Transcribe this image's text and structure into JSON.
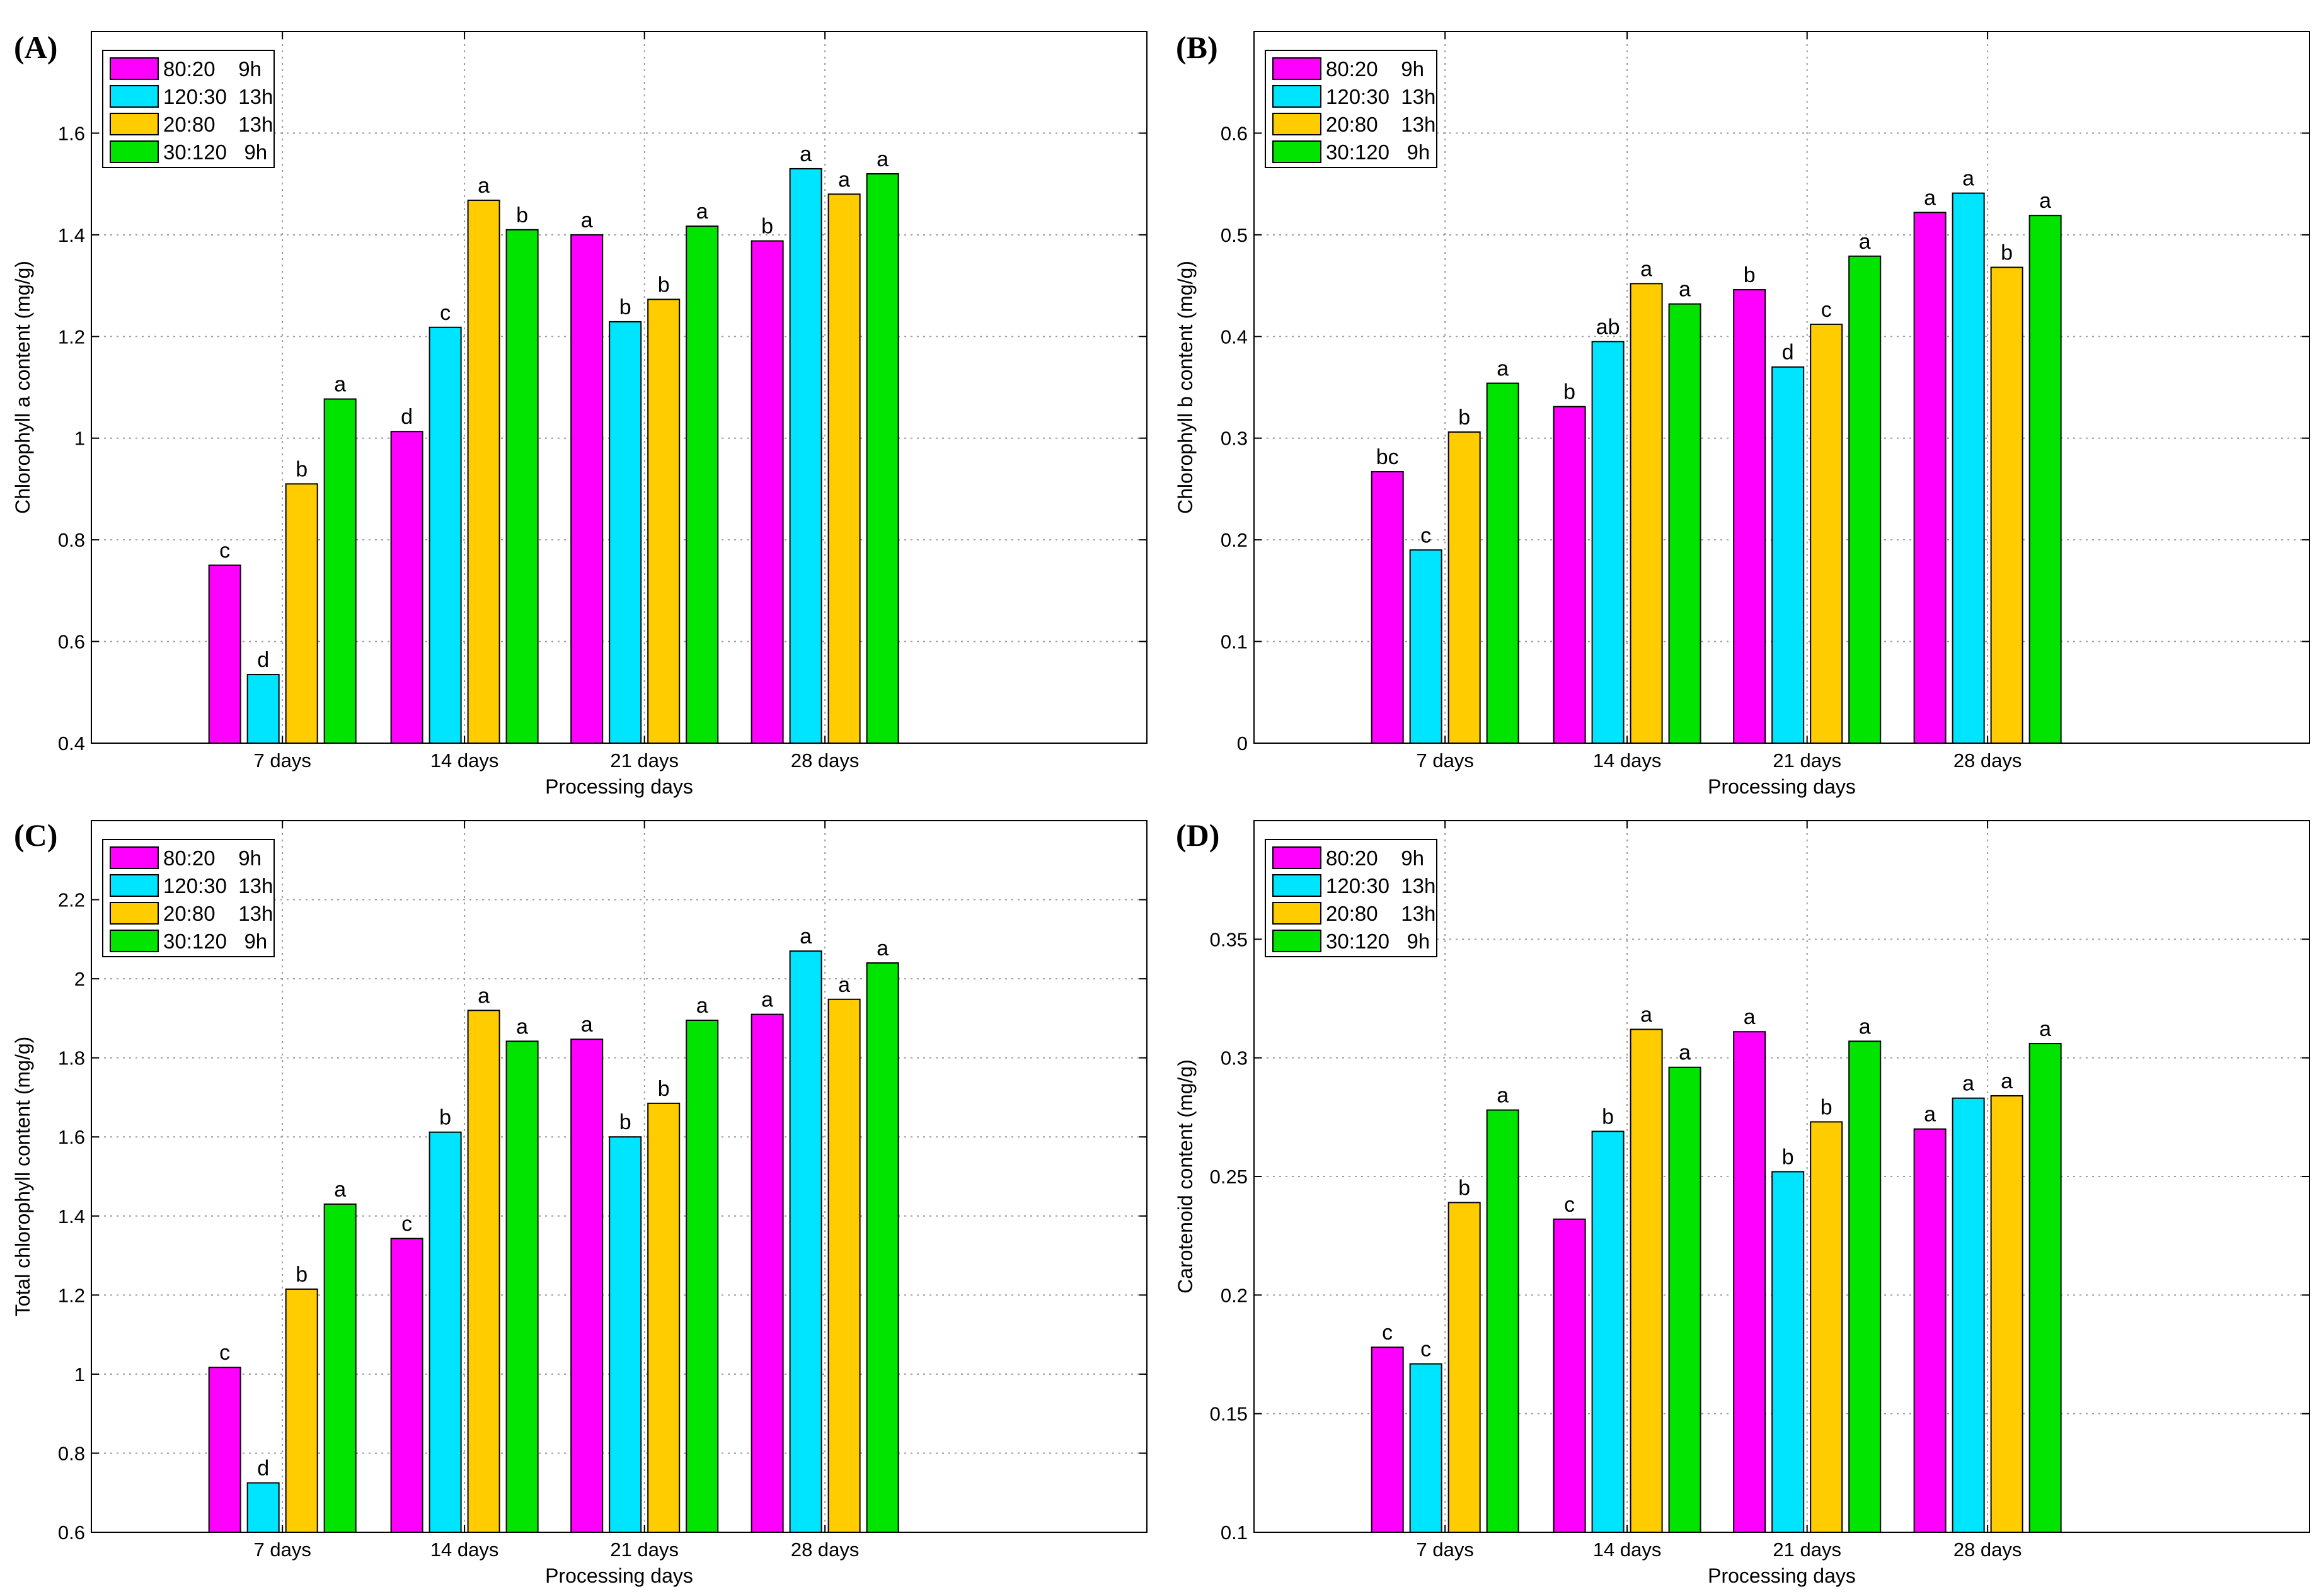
{
  "legend": {
    "entries": [
      {
        "text": "80:20    9h",
        "color": "#ff00ff"
      },
      {
        "text": "120:30  13h",
        "color": "#00e5ff"
      },
      {
        "text": "20:80    13h",
        "color": "#ffcc00"
      },
      {
        "text": "30:120   9h",
        "color": "#00e400"
      }
    ]
  },
  "chart_data": [
    {
      "panel_label": "(A)",
      "type": "bar",
      "title": "",
      "xlabel": "Processing days",
      "ylabel": "Chlorophyll a content (mg/g)",
      "ylim": [
        0.4,
        1.8
      ],
      "yticks": [
        0.4,
        0.6,
        0.8,
        1,
        1.2,
        1.4,
        1.6
      ],
      "ytick_labels": [
        "0.4",
        "0.6",
        "0.8",
        "1",
        "1.2",
        "1.4",
        "1.6"
      ],
      "grid": true,
      "legend_position": "top-left",
      "categories": [
        "7 days",
        "14 days",
        "21 days",
        "28 days"
      ],
      "series": [
        {
          "name": "80:20 9h",
          "values": [
            0.75,
            1.013,
            1.4,
            1.388
          ],
          "letters": [
            "c",
            "d",
            "a",
            "b"
          ]
        },
        {
          "name": "120:30 13h",
          "values": [
            0.535,
            1.218,
            1.229,
            1.53
          ],
          "letters": [
            "d",
            "c",
            "b",
            "a"
          ]
        },
        {
          "name": "20:80 13h",
          "values": [
            0.91,
            1.468,
            1.273,
            1.48
          ],
          "letters": [
            "b",
            "a",
            "b",
            "a"
          ]
        },
        {
          "name": "30:120 9h",
          "values": [
            1.077,
            1.41,
            1.417,
            1.52
          ],
          "letters": [
            "a",
            "b",
            "a",
            "a"
          ]
        }
      ]
    },
    {
      "panel_label": "(B)",
      "type": "bar",
      "title": "",
      "xlabel": "Processing days",
      "ylabel": "Chlorophyll b content (mg/g)",
      "ylim": [
        0,
        0.7
      ],
      "yticks": [
        0,
        0.1,
        0.2,
        0.3,
        0.4,
        0.5,
        0.6
      ],
      "ytick_labels": [
        "0",
        "0.1",
        "0.2",
        "0.3",
        "0.4",
        "0.5",
        "0.6"
      ],
      "grid": true,
      "legend_position": "top-left",
      "categories": [
        "7 days",
        "14 days",
        "21 days",
        "28 days"
      ],
      "series": [
        {
          "name": "80:20 9h",
          "values": [
            0.267,
            0.331,
            0.446,
            0.522
          ],
          "letters": [
            "bc",
            "b",
            "b",
            "a"
          ]
        },
        {
          "name": "120:30 13h",
          "values": [
            0.19,
            0.395,
            0.37,
            0.541
          ],
          "letters": [
            "c",
            "ab",
            "d",
            "a"
          ]
        },
        {
          "name": "20:80 13h",
          "values": [
            0.306,
            0.452,
            0.412,
            0.468
          ],
          "letters": [
            "b",
            "a",
            "c",
            "b"
          ]
        },
        {
          "name": "30:120 9h",
          "values": [
            0.354,
            0.432,
            0.479,
            0.519
          ],
          "letters": [
            "a",
            "a",
            "a",
            "a"
          ]
        }
      ]
    },
    {
      "panel_label": "(C)",
      "type": "bar",
      "title": "",
      "xlabel": "Processing days",
      "ylabel": "Total chlorophyll content (mg/g)",
      "ylim": [
        0.6,
        2.4
      ],
      "yticks": [
        0.6,
        0.8,
        1,
        1.2,
        1.4,
        1.6,
        1.8,
        2,
        2.2
      ],
      "ytick_labels": [
        "0.6",
        "0.8",
        "1",
        "1.2",
        "1.4",
        "1.6",
        "1.8",
        "2",
        "2.2"
      ],
      "grid": true,
      "legend_position": "top-left",
      "categories": [
        "7 days",
        "14 days",
        "21 days",
        "28 days"
      ],
      "series": [
        {
          "name": "80:20 9h",
          "values": [
            1.017,
            1.343,
            1.847,
            1.91
          ],
          "letters": [
            "c",
            "c",
            "a",
            "a"
          ]
        },
        {
          "name": "120:30 13h",
          "values": [
            0.725,
            1.612,
            1.6,
            2.07
          ],
          "letters": [
            "d",
            "b",
            "b",
            "a"
          ]
        },
        {
          "name": "20:80 13h",
          "values": [
            1.215,
            1.92,
            1.685,
            1.948
          ],
          "letters": [
            "b",
            "a",
            "b",
            "a"
          ]
        },
        {
          "name": "30:120 9h",
          "values": [
            1.43,
            1.842,
            1.895,
            2.04
          ],
          "letters": [
            "a",
            "a",
            "a",
            "a"
          ]
        }
      ]
    },
    {
      "panel_label": "(D)",
      "type": "bar",
      "title": "",
      "xlabel": "Processing days",
      "ylabel": "Carotenoid content (mg/g)",
      "ylim": [
        0.1,
        0.4
      ],
      "yticks": [
        0.1,
        0.15,
        0.2,
        0.25,
        0.3,
        0.35
      ],
      "ytick_labels": [
        "0.1",
        "0.15",
        "0.2",
        "0.25",
        "0.3",
        "0.35"
      ],
      "grid": true,
      "legend_position": "top-left",
      "categories": [
        "7 days",
        "14 days",
        "21 days",
        "28 days"
      ],
      "series": [
        {
          "name": "80:20 9h",
          "values": [
            0.178,
            0.232,
            0.311,
            0.27
          ],
          "letters": [
            "c",
            "c",
            "a",
            "a"
          ]
        },
        {
          "name": "120:30 13h",
          "values": [
            0.171,
            0.269,
            0.252,
            0.283
          ],
          "letters": [
            "c",
            "b",
            "b",
            "a"
          ]
        },
        {
          "name": "20:80 13h",
          "values": [
            0.239,
            0.312,
            0.273,
            0.284
          ],
          "letters": [
            "b",
            "a",
            "b",
            "a"
          ]
        },
        {
          "name": "30:120 9h",
          "values": [
            0.278,
            0.296,
            0.307,
            0.306
          ],
          "letters": [
            "a",
            "a",
            "a",
            "a"
          ]
        }
      ]
    }
  ]
}
